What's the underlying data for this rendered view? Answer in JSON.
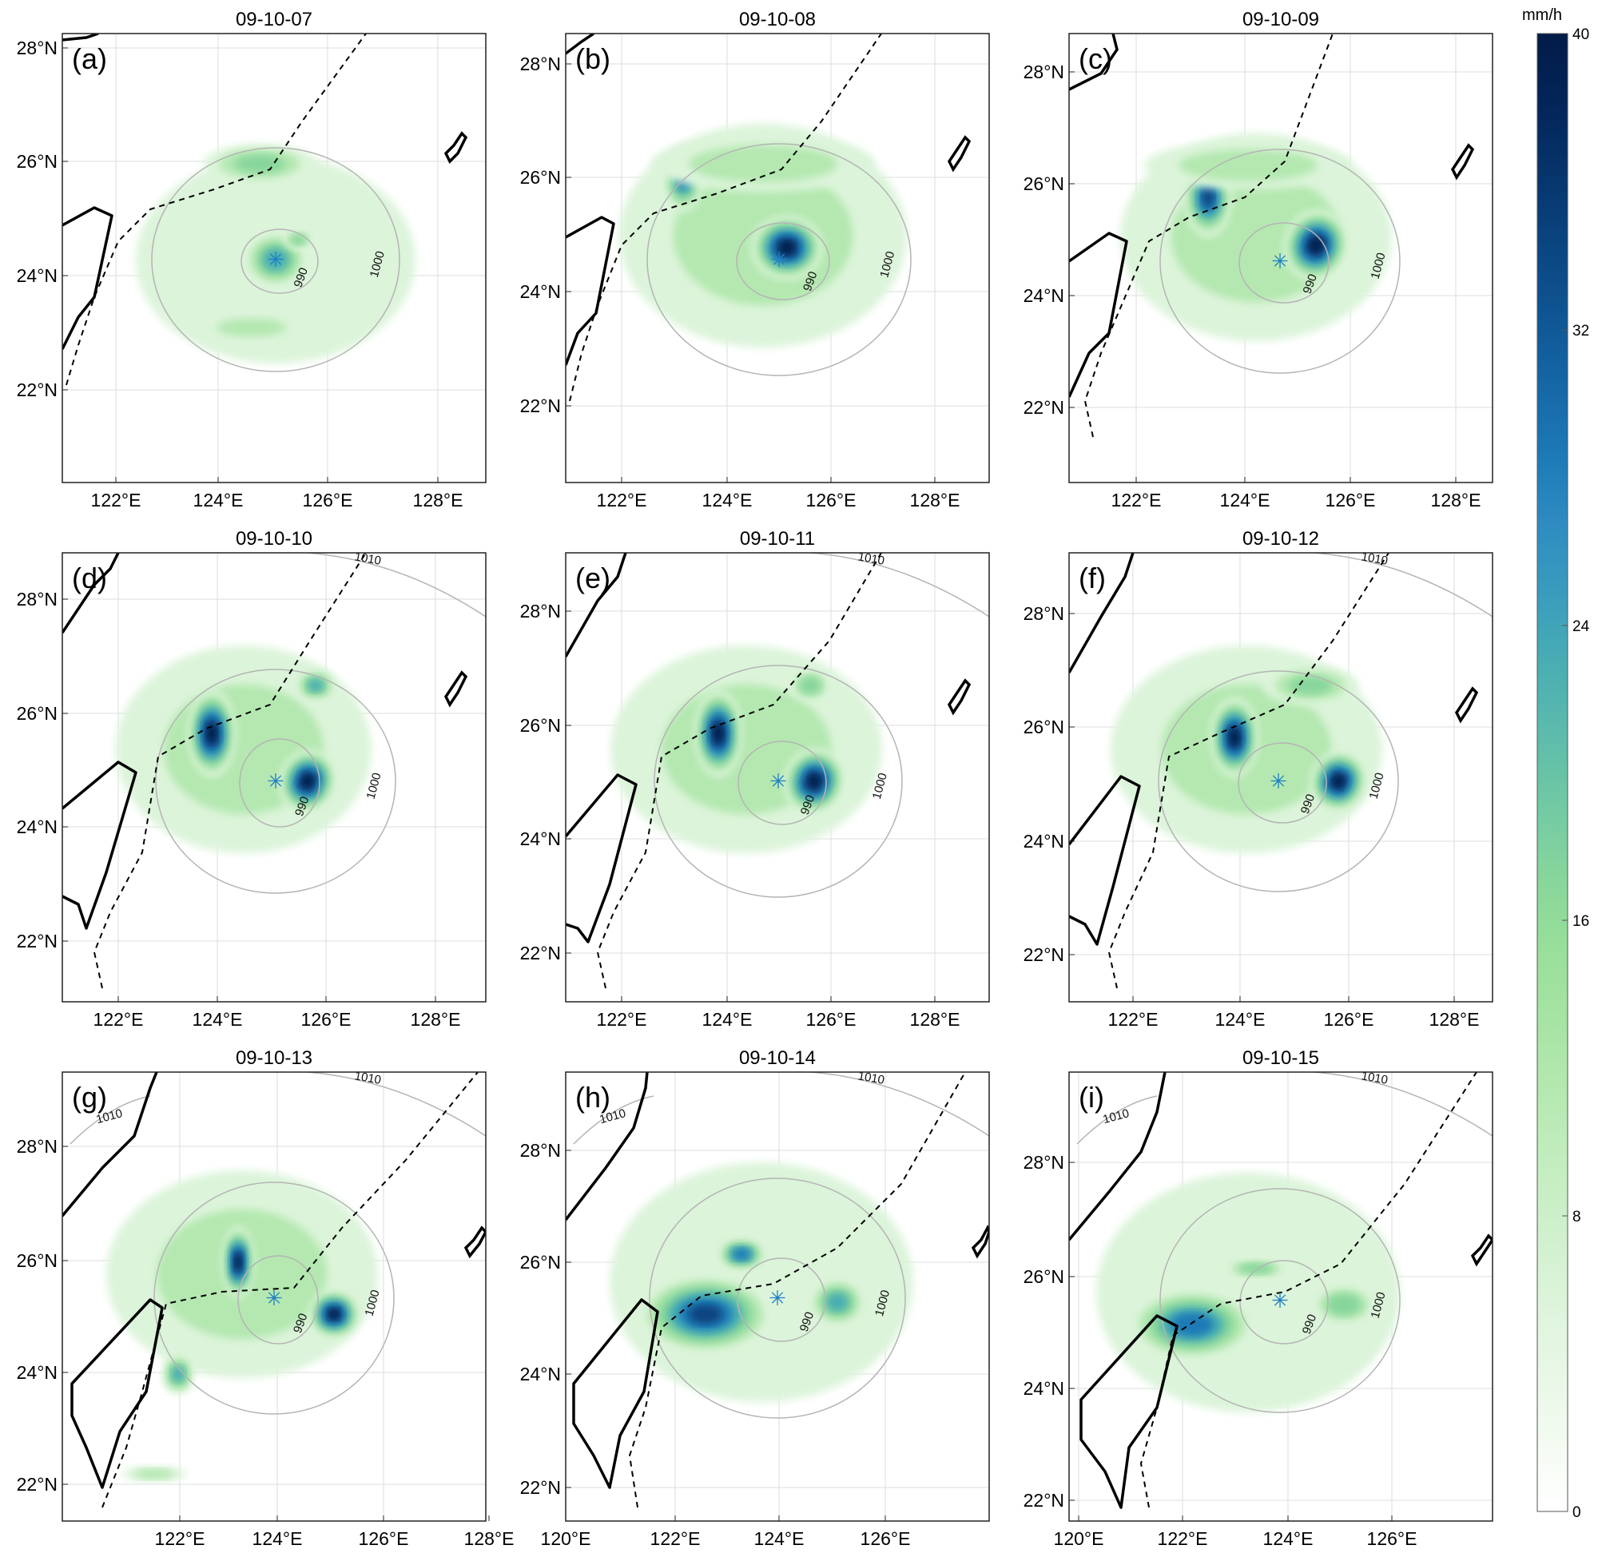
{
  "panels": [
    {
      "label": "(a)",
      "title": "09-10-07",
      "lat_ticks": [
        "28°N",
        "26°N",
        "24°N",
        "22°N"
      ],
      "lon_ticks": [
        "122°E",
        "124°E",
        "126°E",
        "128°E"
      ],
      "iso_labels": [
        "990",
        "1000"
      ],
      "marker": "✳"
    },
    {
      "label": "(b)",
      "title": "09-10-08",
      "lat_ticks": [
        "28°N",
        "26°N",
        "24°N",
        "22°N"
      ],
      "lon_ticks": [
        "122°E",
        "124°E",
        "126°E",
        "128°E"
      ],
      "iso_labels": [
        "990",
        "1000"
      ],
      "marker": "✳"
    },
    {
      "label": "(c)",
      "title": "09-10-09",
      "lat_ticks": [
        "28°N",
        "26°N",
        "24°N",
        "22°N"
      ],
      "lon_ticks": [
        "122°E",
        "124°E",
        "126°E",
        "128°E"
      ],
      "iso_labels": [
        "990",
        "1000"
      ],
      "marker": "✳"
    },
    {
      "label": "(d)",
      "title": "09-10-10",
      "lat_ticks": [
        "28°N",
        "26°N",
        "24°N",
        "22°N"
      ],
      "lon_ticks": [
        "122°E",
        "124°E",
        "126°E",
        "128°E"
      ],
      "iso_labels": [
        "990",
        "1000",
        "1010"
      ],
      "marker": "✳"
    },
    {
      "label": "(e)",
      "title": "09-10-11",
      "lat_ticks": [
        "28°N",
        "26°N",
        "24°N",
        "22°N"
      ],
      "lon_ticks": [
        "122°E",
        "124°E",
        "126°E",
        "128°E"
      ],
      "iso_labels": [
        "990",
        "1000",
        "1010"
      ],
      "marker": "✳"
    },
    {
      "label": "(f)",
      "title": "09-10-12",
      "lat_ticks": [
        "28°N",
        "26°N",
        "24°N",
        "22°N"
      ],
      "lon_ticks": [
        "122°E",
        "124°E",
        "126°E",
        "128°E"
      ],
      "iso_labels": [
        "990",
        "1000",
        "1010"
      ],
      "marker": "✳"
    },
    {
      "label": "(g)",
      "title": "09-10-13",
      "lat_ticks": [
        "28°N",
        "26°N",
        "24°N",
        "22°N"
      ],
      "lon_ticks": [
        "122°E",
        "124°E",
        "126°E",
        "128°E"
      ],
      "iso_labels": [
        "990",
        "1000",
        "1010",
        "1010"
      ],
      "marker": "✳"
    },
    {
      "label": "(h)",
      "title": "09-10-14",
      "lat_ticks": [
        "28°N",
        "26°N",
        "24°N",
        "22°N"
      ],
      "lon_ticks": [
        "120°E",
        "122°E",
        "124°E",
        "126°E"
      ],
      "iso_labels": [
        "990",
        "1000",
        "1010",
        "1010"
      ],
      "marker": "✳"
    },
    {
      "label": "(i)",
      "title": "09-10-15",
      "lat_ticks": [
        "28°N",
        "26°N",
        "24°N",
        "22°N"
      ],
      "lon_ticks": [
        "120°E",
        "122°E",
        "124°E",
        "126°E"
      ],
      "iso_labels": [
        "990",
        "1000",
        "1010",
        "1010"
      ],
      "marker": "✳"
    }
  ],
  "colorbar": {
    "unit": "mm/h",
    "ticks": [
      "40",
      "32",
      "24",
      "16",
      "8",
      "0"
    ],
    "min": 0,
    "max": 40,
    "colors": [
      "#ffffff",
      "#f3fbf1",
      "#e8f7e6",
      "#dcf4da",
      "#cff0cc",
      "#c2edbe",
      "#b4e8b0",
      "#a6e4a3",
      "#98df99",
      "#87d69b",
      "#72caa4",
      "#5dbcab",
      "#4aaeb3",
      "#3a9dbd",
      "#2f8cc1",
      "#1d7ab7",
      "#1567a6",
      "#0f5593",
      "#0a4580",
      "#06356c",
      "#03255a",
      "#021b47"
    ]
  },
  "colors": {
    "coast": "#000000",
    "dashed": "#000000",
    "isobar": "#b4b4b4",
    "center": "#1f7fc4",
    "grid": "#dddddd"
  }
}
